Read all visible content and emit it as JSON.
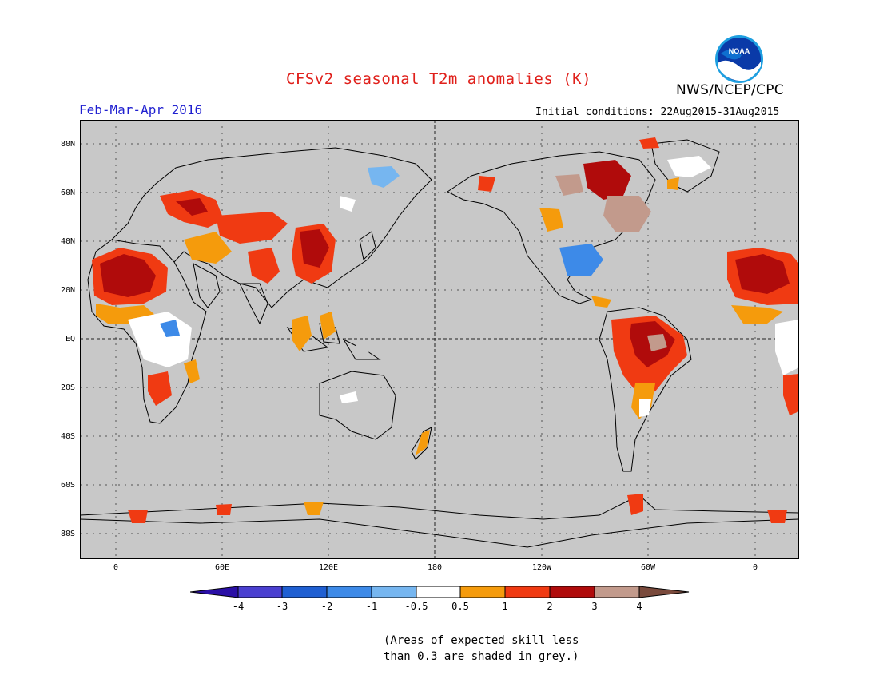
{
  "title": "CFSv2 seasonal T2m anomalies (K)",
  "agency": "NWS/NCEP/CPC",
  "logo_text": "NOAA",
  "season": "Feb-Mar-Apr 2016",
  "initial_conditions": "Initial conditions: 22Aug2015-31Aug2015",
  "lat_labels": [
    "80N",
    "60N",
    "40N",
    "20N",
    "EQ",
    "20S",
    "40S",
    "60S",
    "80S"
  ],
  "lon_labels": [
    "0",
    "60E",
    "120E",
    "180",
    "120W",
    "60W",
    "0"
  ],
  "colorbar": {
    "labels": [
      "-4",
      "-3",
      "-2",
      "-1",
      "-0.5",
      "0.5",
      "1",
      "2",
      "3",
      "4"
    ],
    "colors": [
      "#2a0fa6",
      "#4a3fd0",
      "#1f5fd2",
      "#3d8ae8",
      "#76b6f0",
      "#ffffff",
      "#f59b0c",
      "#f03a12",
      "#b00b0b",
      "#c29a8c",
      "#7a4a3c"
    ]
  },
  "note_line1": "(Areas of expected skill less",
  "note_line2": "than 0.3 are shaded in grey.)",
  "colors": {
    "ocean": "#c8c8c8",
    "title": "#e0201b",
    "season": "#2020d0"
  }
}
